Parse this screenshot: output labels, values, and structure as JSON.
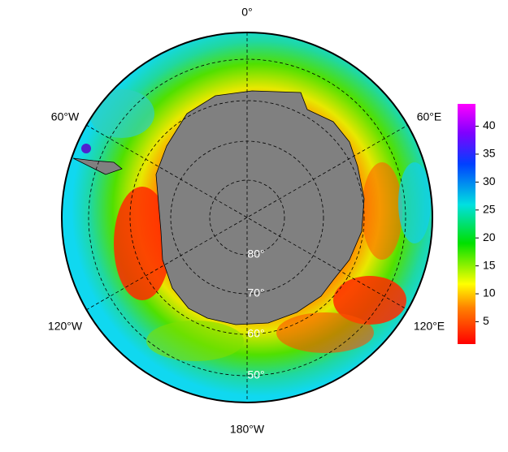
{
  "map": {
    "longitude_labels": [
      "0°",
      "60°E",
      "120°E",
      "180°W",
      "120°W",
      "60°W"
    ],
    "latitude_labels": [
      "80°",
      "70°",
      "60°",
      "50°"
    ],
    "colorbar": {
      "range": [
        1,
        44
      ],
      "ticks": [
        5,
        10,
        15,
        20,
        25,
        30,
        35,
        40
      ]
    }
  }
}
